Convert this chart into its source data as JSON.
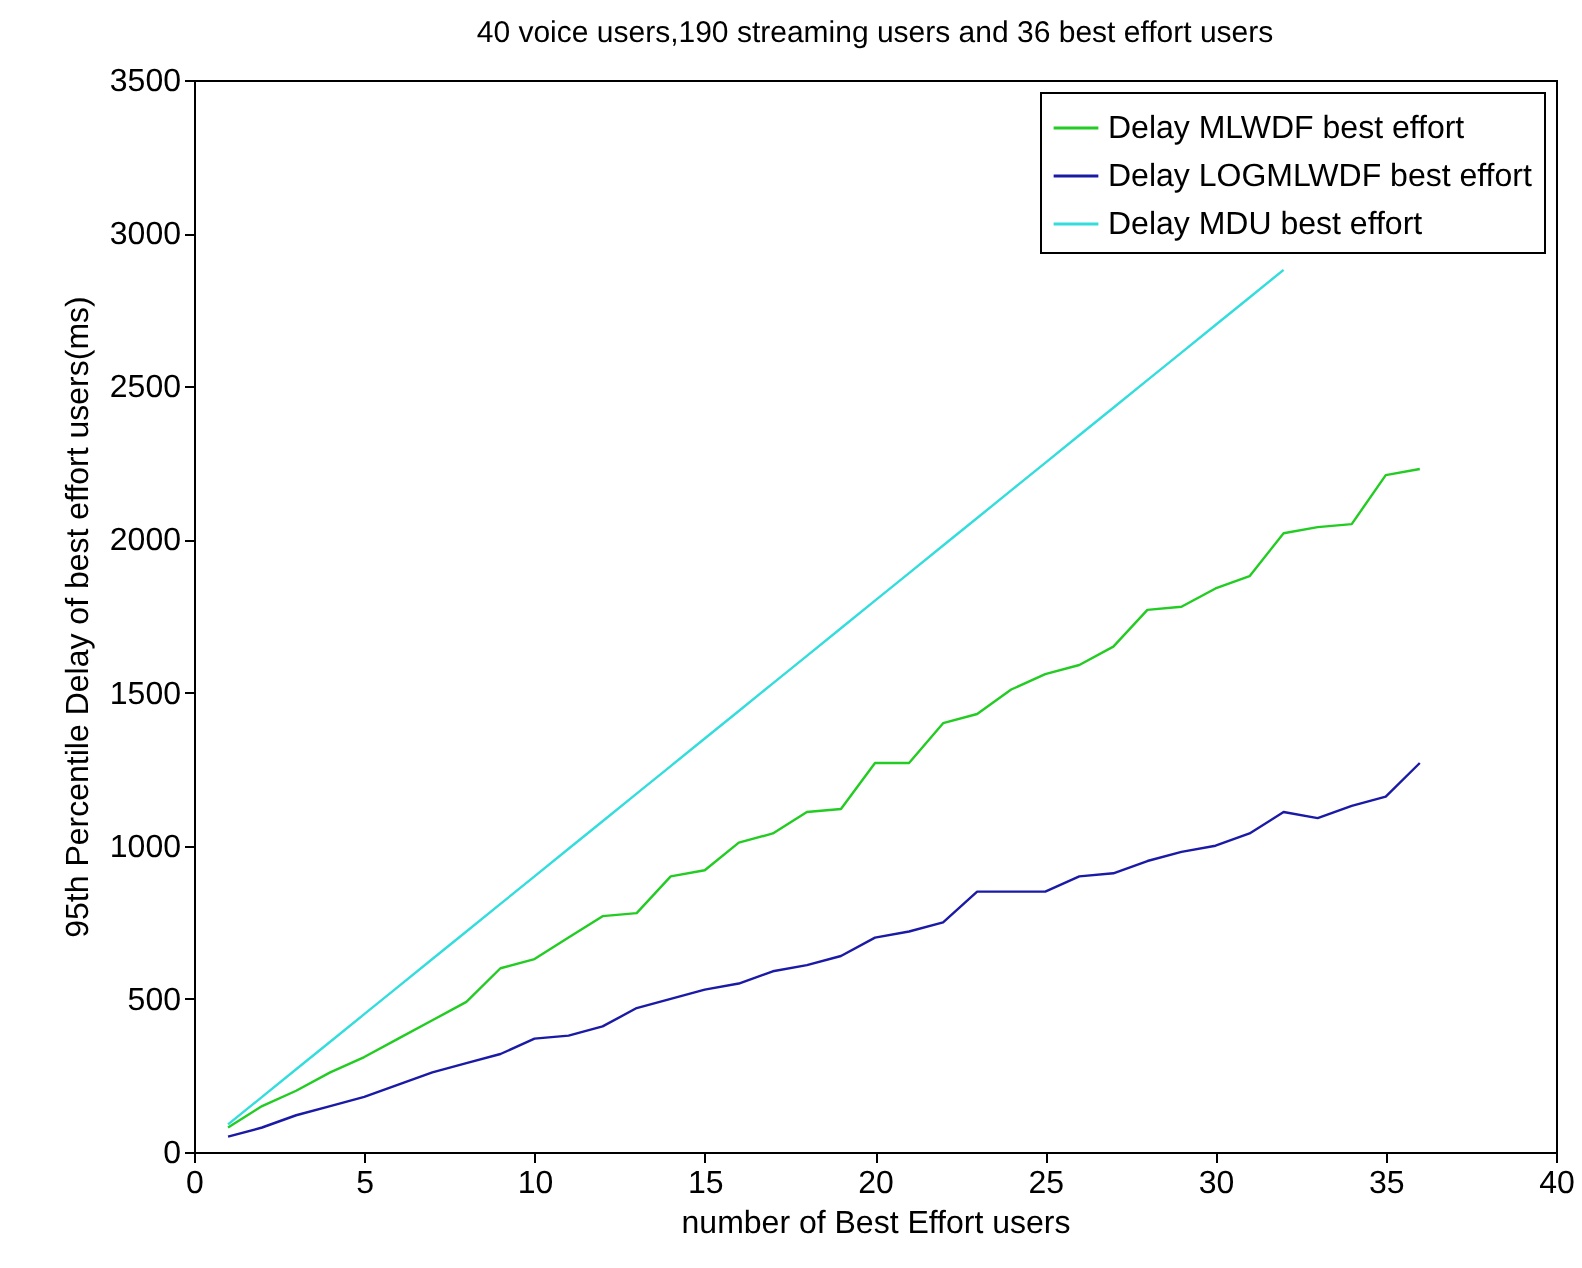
{
  "chart_data": {
    "type": "line",
    "title": "40 voice users,190 streaming users and 36 best effort users",
    "xlabel": "number of Best Effort users",
    "ylabel": "95th Percentile  Delay of best effort users(ms)",
    "x": [
      1,
      2,
      3,
      4,
      5,
      6,
      7,
      8,
      9,
      10,
      11,
      12,
      13,
      14,
      15,
      16,
      17,
      18,
      19,
      20,
      21,
      22,
      23,
      24,
      25,
      26,
      27,
      28,
      29,
      30,
      31,
      32,
      33,
      34,
      35,
      36
    ],
    "series": [
      {
        "name": "Delay MLWDF best effort",
        "color": "#22cc22",
        "values": [
          80,
          150,
          200,
          260,
          310,
          370,
          430,
          490,
          600,
          630,
          700,
          770,
          780,
          900,
          920,
          1010,
          1040,
          1110,
          1120,
          1270,
          1270,
          1400,
          1430,
          1510,
          1560,
          1590,
          1650,
          1770,
          1780,
          1840,
          1880,
          2020,
          2040,
          2050,
          2210,
          2230
        ]
      },
      {
        "name": "Delay LOGMLWDF best effort",
        "color": "#1a1aa6",
        "values": [
          50,
          80,
          120,
          150,
          180,
          220,
          260,
          290,
          320,
          370,
          380,
          410,
          470,
          500,
          530,
          550,
          590,
          610,
          640,
          700,
          720,
          750,
          850,
          850,
          850,
          900,
          910,
          950,
          980,
          1000,
          1040,
          1110,
          1090,
          1130,
          1160,
          1270
        ]
      },
      {
        "name": "Delay MDU best effort",
        "color": "#33dddd",
        "values": [
          90,
          180,
          270,
          360,
          450,
          540,
          630,
          720,
          810,
          900,
          990,
          1080,
          1170,
          1260,
          1350,
          1440,
          1530,
          1620,
          1710,
          1800,
          1890,
          1980,
          2070,
          2160,
          2250,
          2340,
          2430,
          2520,
          2610,
          2700,
          2790,
          2880,
          null,
          null,
          null,
          null
        ]
      }
    ],
    "xlim": [
      0,
      40
    ],
    "xticks": [
      0,
      5,
      10,
      15,
      20,
      25,
      30,
      35,
      40
    ],
    "ylim": [
      0,
      3500
    ],
    "yticks": [
      0,
      500,
      1000,
      1500,
      2000,
      2500,
      3000,
      3500
    ],
    "legend": "top right"
  }
}
